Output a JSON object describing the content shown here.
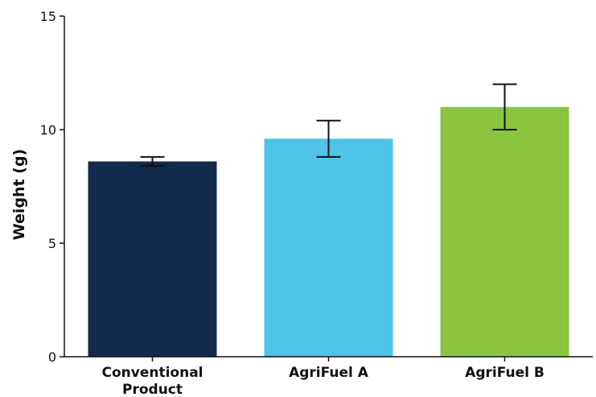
{
  "chart_data": {
    "type": "bar",
    "title": "",
    "xlabel": "",
    "ylabel": "Weight (g)",
    "ylim": [
      0,
      15
    ],
    "yticks": [
      0,
      5,
      10,
      15
    ],
    "grid": false,
    "categories": [
      [
        "Conventional",
        "Product"
      ],
      [
        "AgriFuel A"
      ],
      [
        "AgriFuel B"
      ]
    ],
    "values": [
      8.6,
      9.6,
      11.0
    ],
    "error": [
      0.2,
      0.8,
      1.0
    ],
    "colors": [
      "#13294b",
      "#4fc3e8",
      "#8bc53f"
    ]
  }
}
